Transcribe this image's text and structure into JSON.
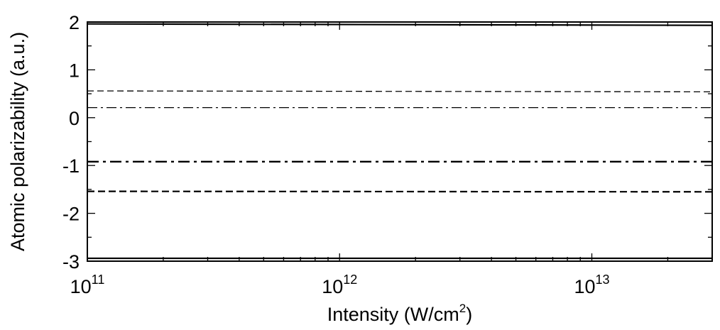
{
  "chart_data": {
    "type": "line",
    "xlabel": "Intensity (W/cm",
    "xlabel_sup": "2",
    "xlabel_close": ")",
    "ylabel": "Atomic polarizability (a.u.)",
    "xscale": "log",
    "xlim": [
      100000000000.0,
      30000000000000.0
    ],
    "ylim": [
      -3,
      2
    ],
    "x_ticks": [
      {
        "value": 100000000000.0,
        "base": "10",
        "exp": "11"
      },
      {
        "value": 1000000000000.0,
        "base": "10",
        "exp": "12"
      },
      {
        "value": 10000000000000.0,
        "base": "10",
        "exp": "13"
      }
    ],
    "y_ticks": [
      {
        "value": 2,
        "label": "2"
      },
      {
        "value": 1,
        "label": "1"
      },
      {
        "value": 0,
        "label": "0"
      },
      {
        "value": -1,
        "label": "-1"
      },
      {
        "value": -2,
        "label": "-2"
      },
      {
        "value": -3,
        "label": "-3"
      }
    ],
    "grid": false,
    "series": [
      {
        "style": "solid",
        "x": [
          100000000000.0,
          30000000000000.0
        ],
        "y": [
          1.96,
          1.93
        ]
      },
      {
        "style": "dashed-thin",
        "x": [
          100000000000.0,
          30000000000000.0
        ],
        "y": [
          0.56,
          0.54
        ]
      },
      {
        "style": "dashdot-thin",
        "x": [
          100000000000.0,
          30000000000000.0
        ],
        "y": [
          0.21,
          0.21
        ]
      },
      {
        "style": "dashdot-thick",
        "x": [
          100000000000.0,
          30000000000000.0
        ],
        "y": [
          -0.92,
          -0.92
        ]
      },
      {
        "style": "dashed-thick",
        "x": [
          100000000000.0,
          30000000000000.0
        ],
        "y": [
          -1.54,
          -1.55
        ]
      },
      {
        "style": "solid",
        "x": [
          100000000000.0,
          30000000000000.0
        ],
        "y": [
          -2.94,
          -2.94
        ]
      }
    ]
  }
}
